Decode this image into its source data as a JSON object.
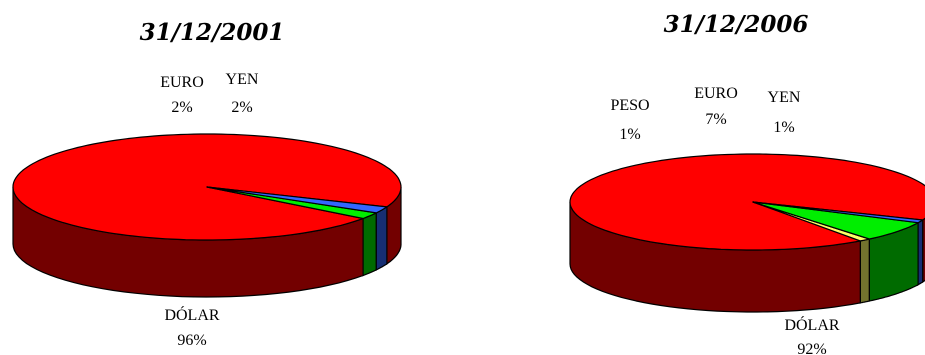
{
  "chart_data": [
    {
      "type": "pie",
      "title": "31/12/2001",
      "slices": [
        {
          "label": "DÓLAR",
          "value": 96,
          "display": "96%",
          "color": "#ff0000"
        },
        {
          "label": "EURO",
          "value": 2,
          "display": "2%",
          "color": "#00ee00"
        },
        {
          "label": "YEN",
          "value": 2,
          "display": "2%",
          "color": "#3366ff"
        }
      ]
    },
    {
      "type": "pie",
      "title": "31/12/2006",
      "slices": [
        {
          "label": "DÓLAR",
          "value": 92,
          "display": "92%",
          "color": "#ff0000"
        },
        {
          "label": "PESO",
          "value": 1,
          "display": "1%",
          "color": "#ffff66"
        },
        {
          "label": "EURO",
          "value": 7,
          "display": "7%",
          "color": "#00ee00"
        },
        {
          "label": "YEN",
          "value": 1,
          "display": "1%",
          "color": "#3366ff"
        }
      ]
    }
  ]
}
